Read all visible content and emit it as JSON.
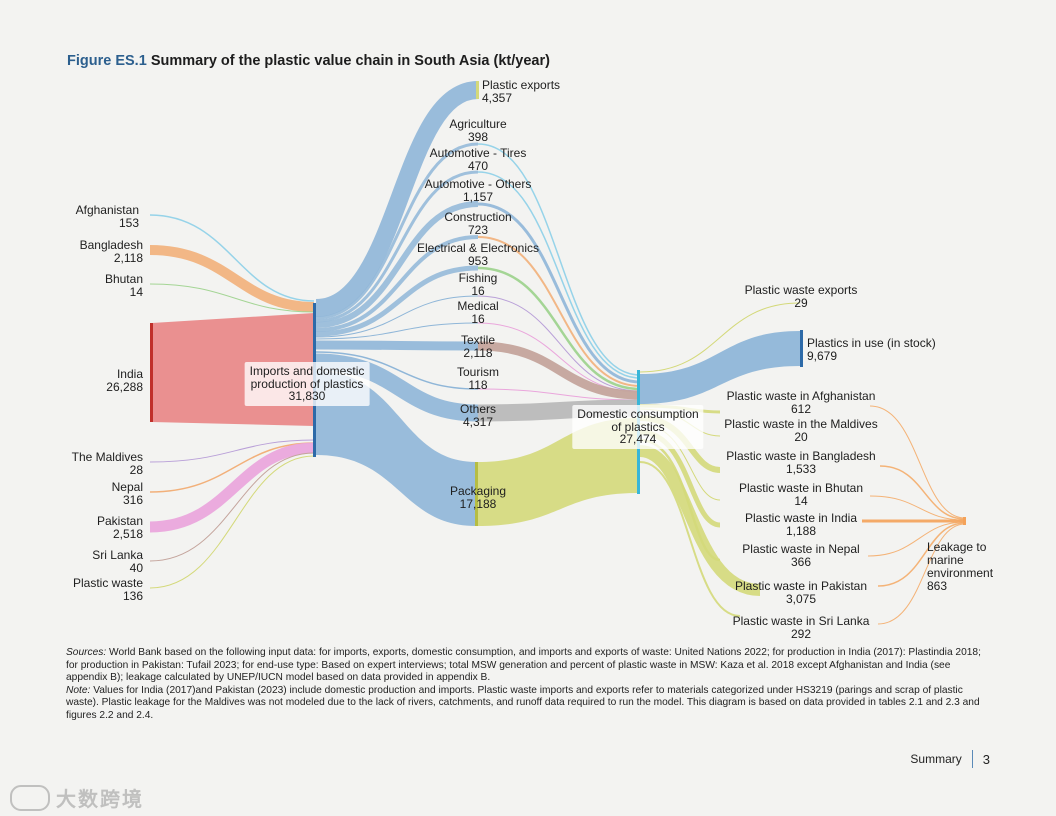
{
  "figure": {
    "label": "Figure ES.1",
    "title": "Summary of the plastic value chain in South Asia (kt/year)"
  },
  "colors": {
    "blue": "#8fb6d8",
    "blue_dark": "#2d6aa8",
    "red": "#e68585",
    "red_dark": "#c0302a",
    "orange": "#f2b07a",
    "pink": "#eaa6dc",
    "olive": "#d4d97a",
    "taupe": "#c4a49c",
    "grey": "#b9b9b9",
    "green": "#9bd18b",
    "leak": "#f4a259",
    "cyan": "#38b6d8"
  },
  "nodes": {
    "afghanistan": {
      "name": "Afghanistan",
      "value": "153"
    },
    "bangladesh": {
      "name": "Bangladesh",
      "value": "2,118"
    },
    "bhutan": {
      "name": "Bhutan",
      "value": "14"
    },
    "india": {
      "name": "India",
      "value": "26,288"
    },
    "maldives": {
      "name": "The Maldives",
      "value": "28"
    },
    "nepal": {
      "name": "Nepal",
      "value": "316"
    },
    "pakistan": {
      "name": "Pakistan",
      "value": "2,518"
    },
    "srilanka": {
      "name": "Sri Lanka",
      "value": "40"
    },
    "plasticwaste": {
      "name": "Plastic waste",
      "value": "136"
    },
    "imports": {
      "name_line1": "Imports and domestic",
      "name_line2": "production of plastics",
      "value": "31,830"
    },
    "exports": {
      "name": "Plastic exports",
      "value": "4,357"
    },
    "agriculture": {
      "name": "Agriculture",
      "value": "398"
    },
    "tires": {
      "name": "Automotive - Tires",
      "value": "470"
    },
    "autoothers": {
      "name": "Automotive - Others",
      "value": "1,157"
    },
    "construction": {
      "name": "Construction",
      "value": "723"
    },
    "electrical": {
      "name": "Electrical & Electronics",
      "value": "953"
    },
    "fishing": {
      "name": "Fishing",
      "value": "16"
    },
    "medical": {
      "name": "Medical",
      "value": "16"
    },
    "textile": {
      "name": "Textile",
      "value": "2,118"
    },
    "tourism": {
      "name": "Tourism",
      "value": "118"
    },
    "others": {
      "name": "Others",
      "value": "4,317"
    },
    "packaging": {
      "name": "Packaging",
      "value": "17,188"
    },
    "domestic": {
      "name_line1": "Domestic consumption",
      "name_line2": "of plastics",
      "value": "27,474"
    },
    "wasteexports": {
      "name": "Plastic waste exports",
      "value": "29"
    },
    "inuse": {
      "name": "Plastics in use (in stock)",
      "value": "9,679"
    },
    "w_afghanistan": {
      "name": "Plastic waste in Afghanistan",
      "value": "612"
    },
    "w_maldives": {
      "name": "Plastic waste in the Maldives",
      "value": "20"
    },
    "w_bangladesh": {
      "name": "Plastic waste in Bangladesh",
      "value": "1,533"
    },
    "w_bhutan": {
      "name": "Plastic waste in Bhutan",
      "value": "14"
    },
    "w_india": {
      "name": "Plastic waste in India",
      "value": "1,188"
    },
    "w_nepal": {
      "name": "Plastic waste in Nepal",
      "value": "366"
    },
    "w_pakistan": {
      "name": "Plastic waste in Pakistan",
      "value": "3,075"
    },
    "w_srilanka": {
      "name": "Plastic waste in Sri Lanka",
      "value": "292"
    },
    "leakage": {
      "name_line1": "Leakage to",
      "name_line2": "marine",
      "name_line3": "environment",
      "value": "863"
    }
  },
  "sources": {
    "label": "Sources:",
    "text": " World Bank based on the following input data: for imports, exports, domestic consumption, and imports and exports of waste: United Nations 2022; for production in India (2017): Plastindia 2018; for production in Pakistan: Tufail 2023; for end-use type: Based on expert interviews; total MSW generation and percent of plastic waste in MSW: Kaza et al. 2018 except Afghanistan and India (see appendix B); leakage calculated by UNEP/IUCN model based on data provided in appendix B.",
    "note_label": "Note:",
    "note_text": " Values for India (2017)and Pakistan (2023) include domestic production and imports. Plastic waste imports and exports refer to materials categorized under HS3219 (parings and scrap of plastic waste). Plastic leakage for the Maldives was not modeled due to the lack of rivers, catchments, and runoff data required to run the model. This diagram is based on data provided in tables 2.1 and 2.3 and figures 2.2 and 2.4."
  },
  "footer": {
    "section": "Summary",
    "page": "3"
  },
  "watermark": {
    "text": "大数跨境"
  }
}
